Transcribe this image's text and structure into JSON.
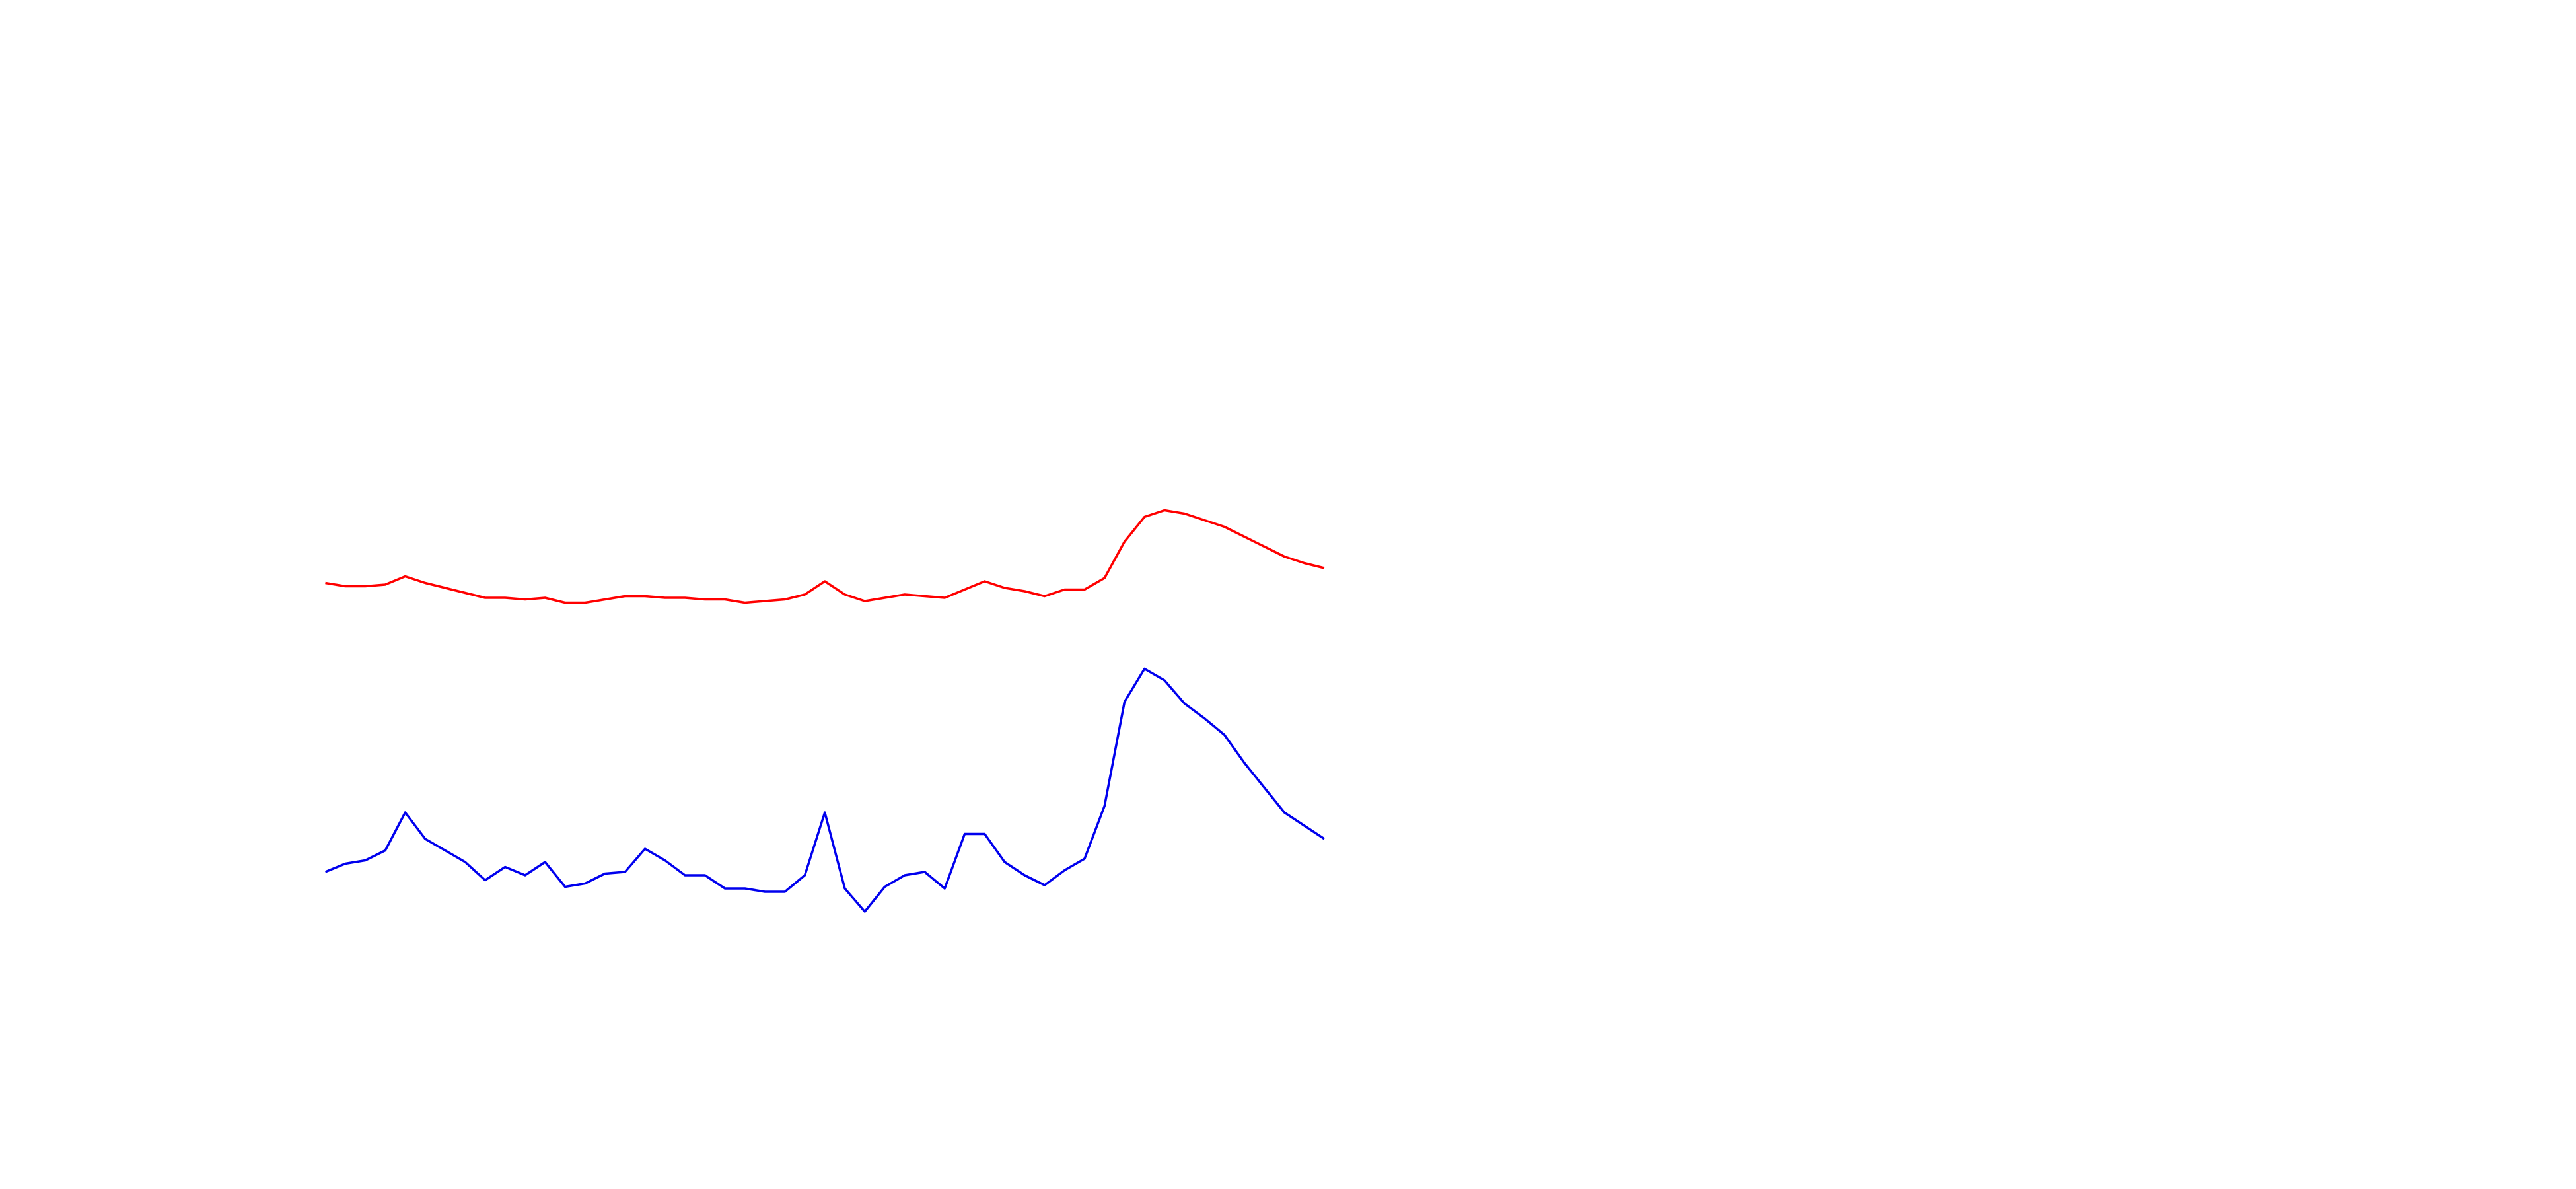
{
  "chart_data": {
    "type": "line",
    "ylim": [
      0,
      720
    ],
    "series": [
      {
        "color": "#ff0000",
        "values": [
          367,
          365,
          365,
          366,
          371,
          367,
          364,
          361,
          358,
          358,
          357,
          358,
          355,
          355,
          357,
          359,
          359,
          358,
          358,
          357,
          357,
          355,
          356,
          357,
          360,
          368,
          360,
          356,
          358,
          360,
          359,
          358,
          363,
          368,
          364,
          362,
          359,
          363,
          363,
          370,
          392,
          407,
          411,
          409,
          405,
          401,
          395,
          389,
          383,
          379,
          376
        ]
      },
      {
        "color": "#0000ee",
        "values": [
          192,
          197,
          199,
          205,
          228,
          212,
          205,
          198,
          187,
          195,
          190,
          198,
          183,
          185,
          191,
          192,
          206,
          199,
          190,
          190,
          182,
          182,
          180,
          180,
          190,
          228,
          182,
          168,
          183,
          190,
          192,
          182,
          215,
          215,
          198,
          190,
          184,
          193,
          200,
          232,
          295,
          315,
          308,
          294,
          285,
          275,
          258,
          243,
          228,
          220,
          212
        ]
      }
    ]
  }
}
